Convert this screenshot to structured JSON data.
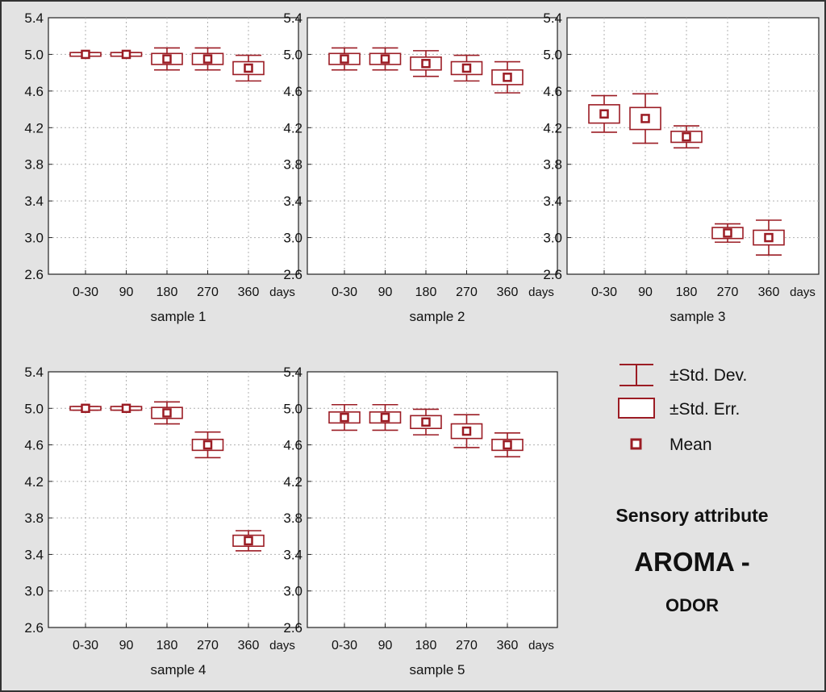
{
  "chart_data": {
    "type": "box",
    "colors": {
      "background": "#e3e3e3",
      "plot": "#ffffff",
      "marks": "#9b1c24",
      "grid": "#b0b0b0"
    },
    "grid": true,
    "ylim": [
      2.6,
      5.4
    ],
    "y_ticks": [
      "5.4",
      "5.0",
      "4.6",
      "4.2",
      "3.8",
      "3.4",
      "3.0",
      "2.6"
    ],
    "categories": [
      "0-30",
      "90",
      "180",
      "270",
      "360"
    ],
    "x_unit": "days",
    "legend": {
      "position": "right",
      "items": [
        {
          "label": "±Std. Dev.",
          "icon": "whisker-icon"
        },
        {
          "label": "±Std. Err.",
          "icon": "box-icon"
        },
        {
          "label": "Mean",
          "icon": "mean-marker-icon"
        }
      ]
    },
    "title_lines": [
      "Sensory attribute",
      "AROMA -",
      "ODOR"
    ],
    "panels": [
      {
        "label": "sample 1",
        "mean": [
          5.0,
          5.0,
          4.95,
          4.95,
          4.85
        ],
        "se": [
          0.02,
          0.02,
          0.06,
          0.06,
          0.07
        ],
        "sd": [
          0.02,
          0.02,
          0.12,
          0.12,
          0.14
        ]
      },
      {
        "label": "sample 2",
        "mean": [
          4.95,
          4.95,
          4.9,
          4.85,
          4.75
        ],
        "se": [
          0.06,
          0.06,
          0.07,
          0.07,
          0.08
        ],
        "sd": [
          0.12,
          0.12,
          0.14,
          0.14,
          0.17
        ]
      },
      {
        "label": "sample 3",
        "mean": [
          4.35,
          4.3,
          4.1,
          3.05,
          3.0
        ],
        "se": [
          0.1,
          0.12,
          0.06,
          0.06,
          0.08
        ],
        "sd": [
          0.2,
          0.27,
          0.12,
          0.1,
          0.19
        ]
      },
      {
        "label": "sample 4",
        "mean": [
          5.0,
          5.0,
          4.95,
          4.6,
          3.55
        ],
        "se": [
          0.02,
          0.02,
          0.06,
          0.06,
          0.06
        ],
        "sd": [
          0.02,
          0.02,
          0.12,
          0.14,
          0.11
        ]
      },
      {
        "label": "sample 5",
        "mean": [
          4.9,
          4.9,
          4.85,
          4.75,
          4.6
        ],
        "se": [
          0.06,
          0.06,
          0.07,
          0.08,
          0.06
        ],
        "sd": [
          0.14,
          0.14,
          0.14,
          0.18,
          0.13
        ]
      }
    ]
  }
}
